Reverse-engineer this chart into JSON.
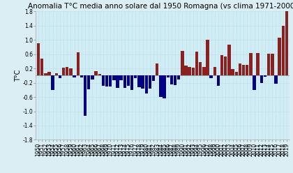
{
  "title": "Anomalia T°C media anno solare dal 1950 Romagna (vs clima 1971-2000)",
  "ylabel": "T°C",
  "years": [
    1950,
    1951,
    1952,
    1953,
    1954,
    1955,
    1956,
    1957,
    1958,
    1959,
    1960,
    1961,
    1962,
    1963,
    1964,
    1965,
    1966,
    1967,
    1968,
    1969,
    1970,
    1971,
    1972,
    1973,
    1974,
    1975,
    1976,
    1977,
    1978,
    1979,
    1980,
    1981,
    1982,
    1983,
    1984,
    1985,
    1986,
    1987,
    1988,
    1989,
    1990,
    1991,
    1992,
    1993,
    1994,
    1995,
    1996,
    1997,
    1998,
    1999,
    2000,
    2001,
    2002,
    2003,
    2004,
    2005,
    2006,
    2007,
    2008,
    2009,
    2010,
    2011,
    2012,
    2013,
    2014,
    2015,
    2016,
    2017,
    2018,
    2019
  ],
  "values": [
    0.9,
    0.48,
    0.06,
    0.1,
    -0.4,
    0.06,
    -0.08,
    0.22,
    0.24,
    0.2,
    -0.06,
    0.66,
    -0.06,
    -1.12,
    -0.38,
    -0.1,
    0.12,
    0.04,
    -0.28,
    -0.3,
    -0.3,
    -0.12,
    -0.34,
    -0.12,
    -0.34,
    -0.28,
    -0.4,
    -0.08,
    -0.32,
    -0.36,
    -0.5,
    -0.36,
    -0.14,
    0.34,
    -0.6,
    -0.64,
    -0.06,
    -0.24,
    -0.26,
    -0.1,
    0.7,
    0.28,
    0.24,
    0.22,
    0.68,
    0.38,
    0.24,
    1.0,
    -0.08,
    0.24,
    -0.28,
    0.58,
    0.54,
    0.86,
    0.18,
    0.1,
    0.34,
    0.3,
    0.3,
    0.64,
    -0.4,
    0.64,
    -0.2,
    -0.04,
    0.62,
    0.62,
    -0.22,
    1.06,
    1.4,
    1.82
  ],
  "pos_color": "#8B2020",
  "neg_color": "#000080",
  "bg_color": "#daeef3",
  "plot_bg_color": "#d0ecf4",
  "grid_color": "#b0d4dc",
  "ylim": [
    -1.8,
    1.8
  ],
  "yticks": [
    -1.8,
    -1.4,
    -1.0,
    -0.6,
    -0.2,
    0.2,
    0.6,
    1.0,
    1.4,
    1.8
  ],
  "title_fontsize": 7.5,
  "ylabel_fontsize": 7,
  "tick_fontsize": 5.5
}
